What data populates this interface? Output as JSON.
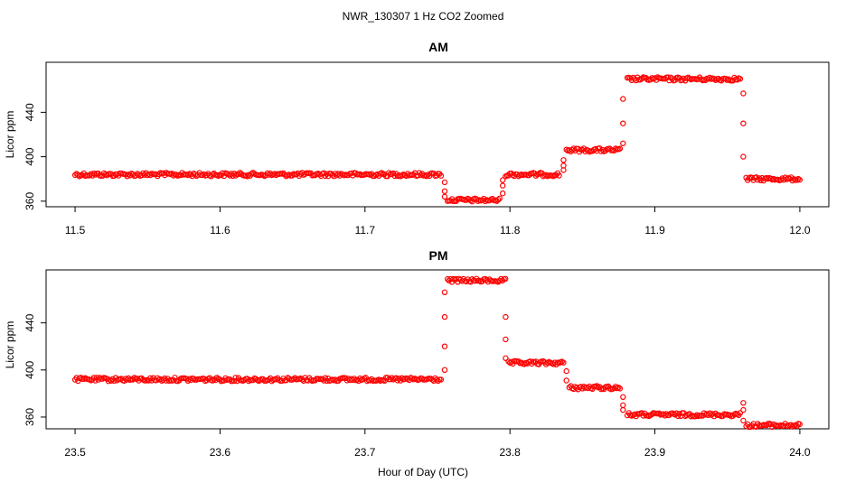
{
  "title": "NWR_130307  1 Hz CO2 Zoomed",
  "xlabel": "Hour of Day (UTC)",
  "colors": {
    "points": "#ff0000",
    "axis": "#000000",
    "background": "#ffffff"
  },
  "chart_data": [
    {
      "type": "scatter",
      "title": "AM",
      "ylabel": "Licor ppm",
      "xlim": [
        11.48,
        12.02
      ],
      "ylim": [
        355,
        485
      ],
      "xticks": [
        11.5,
        11.6,
        11.7,
        11.8,
        11.9,
        12.0
      ],
      "xtick_labels": [
        "11.5",
        "11.6",
        "11.7",
        "11.8",
        "11.9",
        "12.0"
      ],
      "yticks": [
        360,
        400,
        440
      ],
      "ytick_labels": [
        "360",
        "400",
        "440"
      ],
      "grid": false,
      "series": [
        {
          "marker": "open-circle",
          "segments": [
            {
              "x": [
                11.5,
                11.753
              ],
              "y": 384
            },
            {
              "x": [
                11.757,
                11.793
              ],
              "y": 361
            },
            {
              "x": [
                11.797,
                11.834
              ],
              "y": 384
            },
            {
              "x": [
                11.839,
                11.876
              ],
              "y": 406
            },
            {
              "x": [
                11.881,
                11.959
              ],
              "y": 470
            },
            {
              "x": [
                11.963,
                12.0
              ],
              "y": 380
            }
          ],
          "transitions": [
            {
              "x": 11.755,
              "y": [
                377,
                369,
                364
              ]
            },
            {
              "x": 11.795,
              "y": [
                367,
                374,
                379
              ]
            },
            {
              "x": 11.837,
              "y": [
                388,
                392,
                397
              ]
            },
            {
              "x": 11.878,
              "y": [
                412,
                430,
                452
              ]
            },
            {
              "x": 11.961,
              "y": [
                457,
                430,
                400
              ]
            }
          ]
        }
      ]
    },
    {
      "type": "scatter",
      "title": "PM",
      "ylabel": "Licor ppm",
      "xlim": [
        23.48,
        24.02
      ],
      "ylim": [
        350,
        485
      ],
      "xticks": [
        23.5,
        23.6,
        23.7,
        23.8,
        23.9,
        24.0
      ],
      "xtick_labels": [
        "23.5",
        "23.6",
        "23.7",
        "23.8",
        "23.9",
        "24.0"
      ],
      "yticks": [
        360,
        400,
        440
      ],
      "ytick_labels": [
        "360",
        "400",
        "440"
      ],
      "grid": false,
      "series": [
        {
          "marker": "open-circle",
          "segments": [
            {
              "x": [
                23.5,
                23.753
              ],
              "y": 392
            },
            {
              "x": [
                23.757,
                23.797
              ],
              "y": 476
            },
            {
              "x": [
                23.799,
                23.837
              ],
              "y": 406
            },
            {
              "x": [
                23.841,
                23.876
              ],
              "y": 385
            },
            {
              "x": [
                23.881,
                23.959
              ],
              "y": 362
            },
            {
              "x": [
                23.963,
                24.0
              ],
              "y": 353
            }
          ],
          "transitions": [
            {
              "x": 23.755,
              "y": [
                400,
                420,
                445,
                466
              ]
            },
            {
              "x": 23.797,
              "y": [
                445,
                426,
                410
              ]
            },
            {
              "x": 23.839,
              "y": [
                399,
                391
              ]
            },
            {
              "x": 23.878,
              "y": [
                377,
                370,
                366
              ]
            },
            {
              "x": 23.961,
              "y": [
                372,
                366,
                357
              ]
            }
          ]
        }
      ]
    }
  ]
}
